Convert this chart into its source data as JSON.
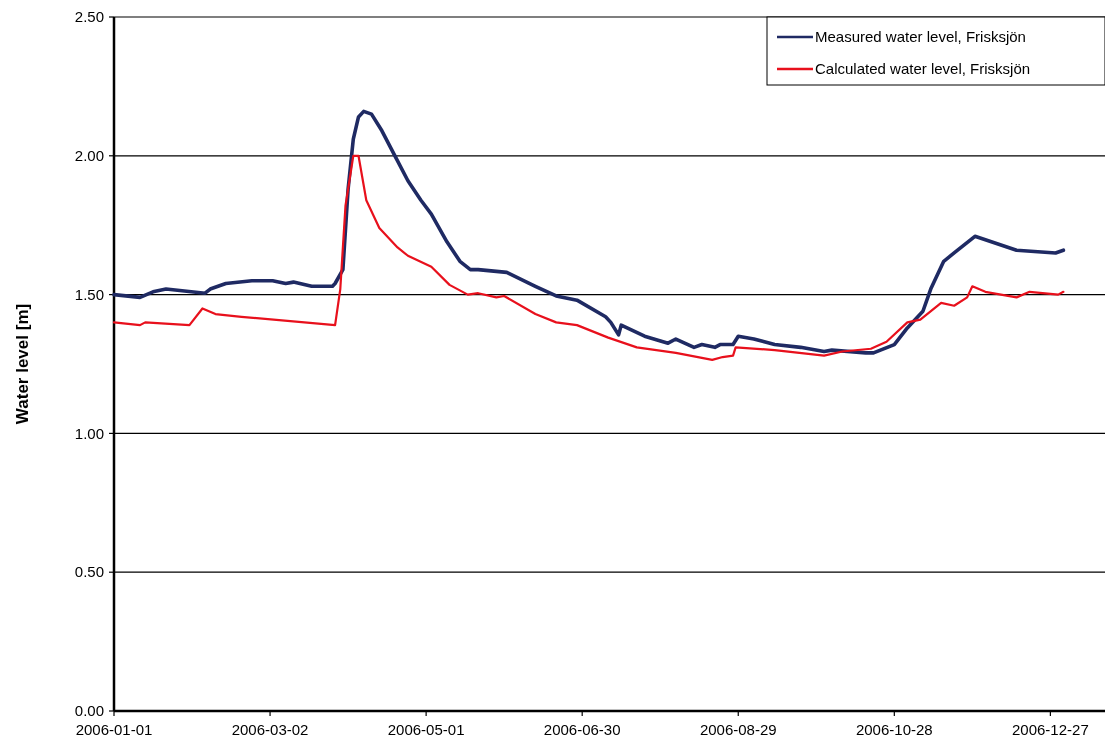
{
  "chart_data": {
    "type": "line",
    "ylabel": "Water level [m]",
    "xlim": [
      "2006-01-01",
      "2007-01-17"
    ],
    "xticks": [
      "2006-01-01",
      "2006-03-02",
      "2006-05-01",
      "2006-06-30",
      "2006-08-29",
      "2006-10-28",
      "2006-12-27"
    ],
    "ylim": [
      0,
      2.5
    ],
    "yticks": [
      {
        "value": 0,
        "label": "0.00"
      },
      {
        "value": 0.5,
        "label": "0.50"
      },
      {
        "value": 1,
        "label": "1.00"
      },
      {
        "value": 1.5,
        "label": "1.50"
      },
      {
        "value": 2,
        "label": "2.00"
      },
      {
        "value": 2.5,
        "label": "2.50"
      }
    ],
    "grid": "y",
    "legend": "top right",
    "marker": "none",
    "line_style": "solid",
    "series": [
      {
        "name": "Measured water level, Frisksjön",
        "color": "#1f2a63",
        "x": [
          "2006-01-01",
          "2006-01-11",
          "2006-01-16",
          "2006-01-21",
          "2006-02-05",
          "2006-02-07",
          "2006-02-13",
          "2006-02-23",
          "2006-03-03",
          "2006-03-08",
          "2006-03-11",
          "2006-03-18",
          "2006-03-26",
          "2006-03-27",
          "2006-03-30",
          "2006-04-01",
          "2006-04-03",
          "2006-04-05",
          "2006-04-07",
          "2006-04-10",
          "2006-04-14",
          "2006-04-19",
          "2006-04-24",
          "2006-04-29",
          "2006-05-03",
          "2006-05-09",
          "2006-05-14",
          "2006-05-18",
          "2006-05-21",
          "2006-06-01",
          "2006-06-12",
          "2006-06-20",
          "2006-06-28",
          "2006-07-09",
          "2006-07-11",
          "2006-07-14",
          "2006-07-15",
          "2006-07-24",
          "2006-08-02",
          "2006-08-05",
          "2006-08-12",
          "2006-08-15",
          "2006-08-20",
          "2006-08-22",
          "2006-08-27",
          "2006-08-29",
          "2006-09-04",
          "2006-09-12",
          "2006-09-22",
          "2006-10-01",
          "2006-10-04",
          "2006-10-17",
          "2006-10-20",
          "2006-10-28",
          "2006-11-02",
          "2006-11-08",
          "2006-11-11",
          "2006-11-16",
          "2006-11-20",
          "2006-11-28",
          "2006-12-14",
          "2006-12-29",
          "2007-01-01"
        ],
        "values": [
          1.5,
          1.49,
          1.51,
          1.52,
          1.505,
          1.52,
          1.54,
          1.55,
          1.55,
          1.54,
          1.545,
          1.53,
          1.53,
          1.54,
          1.59,
          1.88,
          2.06,
          2.14,
          2.16,
          2.15,
          2.09,
          2.0,
          1.91,
          1.84,
          1.79,
          1.69,
          1.62,
          1.59,
          1.59,
          1.58,
          1.53,
          1.495,
          1.48,
          1.42,
          1.4,
          1.355,
          1.39,
          1.35,
          1.325,
          1.34,
          1.31,
          1.32,
          1.31,
          1.32,
          1.32,
          1.35,
          1.34,
          1.32,
          1.31,
          1.295,
          1.3,
          1.29,
          1.29,
          1.32,
          1.38,
          1.44,
          1.52,
          1.62,
          1.65,
          1.71,
          1.66,
          1.65,
          1.66
        ]
      },
      {
        "name": "Calculated water level, Frisksjön",
        "color": "#e8101c",
        "x": [
          "2006-01-01",
          "2006-01-11",
          "2006-01-13",
          "2006-01-30",
          "2006-02-04",
          "2006-02-09",
          "2006-02-19",
          "2006-03-27",
          "2006-03-29",
          "2006-03-31",
          "2006-04-03",
          "2006-04-05",
          "2006-04-08",
          "2006-04-13",
          "2006-04-20",
          "2006-04-24",
          "2006-05-03",
          "2006-05-10",
          "2006-05-17",
          "2006-05-21",
          "2006-05-28",
          "2006-05-31",
          "2006-06-12",
          "2006-06-20",
          "2006-06-28",
          "2006-07-10",
          "2006-07-21",
          "2006-08-05",
          "2006-08-19",
          "2006-08-23",
          "2006-08-27",
          "2006-08-28",
          "2006-09-12",
          "2006-10-01",
          "2006-10-08",
          "2006-10-19",
          "2006-10-25",
          "2006-11-02",
          "2006-11-07",
          "2006-11-15",
          "2006-11-20",
          "2006-11-25",
          "2006-11-27",
          "2006-12-02",
          "2006-12-14",
          "2006-12-19",
          "2006-12-30",
          "2007-01-01"
        ],
        "values": [
          1.4,
          1.39,
          1.4,
          1.39,
          1.45,
          1.43,
          1.42,
          1.39,
          1.52,
          1.82,
          2.0,
          2.0,
          1.84,
          1.74,
          1.67,
          1.64,
          1.6,
          1.535,
          1.5,
          1.505,
          1.49,
          1.495,
          1.43,
          1.4,
          1.39,
          1.345,
          1.31,
          1.29,
          1.265,
          1.275,
          1.28,
          1.31,
          1.3,
          1.28,
          1.295,
          1.305,
          1.33,
          1.4,
          1.41,
          1.47,
          1.46,
          1.49,
          1.53,
          1.51,
          1.49,
          1.51,
          1.5,
          1.51
        ]
      }
    ]
  }
}
